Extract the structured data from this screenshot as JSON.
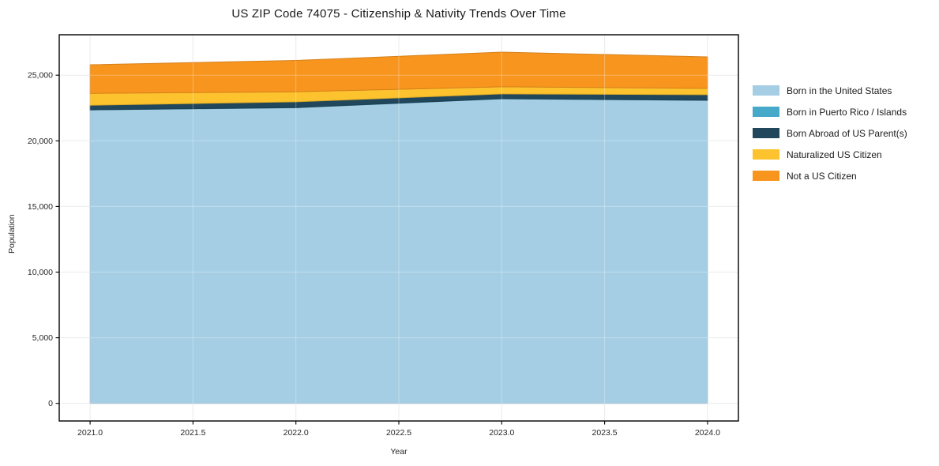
{
  "figure": {
    "background": "#ffffff",
    "spine_color": "#000000",
    "grid_color": "#e4e4e4"
  },
  "chart_data": {
    "type": "area",
    "stacked": true,
    "title": "US ZIP Code 74075 - Citizenship & Nativity Trends Over Time",
    "xlabel": "Year",
    "ylabel": "Population",
    "x": [
      2021,
      2022,
      2023,
      2024
    ],
    "series": [
      {
        "name": "Born in the United States",
        "color": "#a5cee4",
        "values": [
          22350,
          22520,
          23200,
          23080
        ]
      },
      {
        "name": "Born in Puerto Rico / Islands",
        "color": "#46a9c9",
        "values": [
          15,
          15,
          15,
          15
        ]
      },
      {
        "name": "Born Abroad of US Parent(s)",
        "color": "#21475c",
        "values": [
          350,
          440,
          360,
          420
        ]
      },
      {
        "name": "Naturalized US Citizen",
        "color": "#fdc32e",
        "values": [
          900,
          760,
          540,
          480
        ]
      },
      {
        "name": "Not a US Citizen",
        "color": "#f8951e",
        "values": [
          2180,
          2390,
          2640,
          2400
        ]
      }
    ],
    "totals": [
      25795,
      26125,
      26755,
      26395
    ],
    "xlim": [
      2020.85,
      2024.15
    ],
    "ylim": [
      -1340,
      28080
    ],
    "xticks": [
      {
        "value": 2021.0,
        "label": "2021.0"
      },
      {
        "value": 2021.5,
        "label": "2021.5"
      },
      {
        "value": 2022.0,
        "label": "2022.0"
      },
      {
        "value": 2022.5,
        "label": "2022.5"
      },
      {
        "value": 2023.0,
        "label": "2023.0"
      },
      {
        "value": 2023.5,
        "label": "2023.5"
      },
      {
        "value": 2024.0,
        "label": "2024.0"
      }
    ],
    "yticks": [
      {
        "value": 0,
        "label": "0"
      },
      {
        "value": 5000,
        "label": "5,000"
      },
      {
        "value": 10000,
        "label": "10,000"
      },
      {
        "value": 15000,
        "label": "15,000"
      },
      {
        "value": 20000,
        "label": "20,000"
      },
      {
        "value": 25000,
        "label": "25,000"
      }
    ],
    "grid": true,
    "legend_position": "right"
  }
}
